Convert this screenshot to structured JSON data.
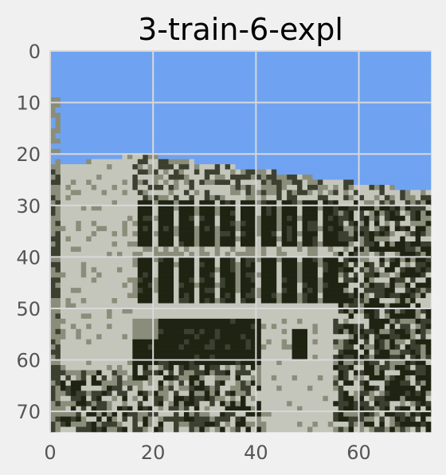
{
  "chart_data": {
    "type": "heatmap",
    "title": "3-train-6-expl",
    "xlabel": "",
    "ylabel": "",
    "xlim": [
      0,
      74
    ],
    "ylim": [
      74,
      0
    ],
    "x_ticks": [
      0,
      20,
      40,
      60
    ],
    "y_ticks": [
      0,
      10,
      20,
      30,
      40,
      50,
      60,
      70
    ],
    "grid": true,
    "image_size": [
      74,
      74
    ],
    "colors": {
      "sky": "#6fa3f2",
      "light": "#c5c6bb",
      "mid": "#8b8d7b",
      "dark": "#3c4030",
      "darkest": "#1e2312",
      "grid": "#d8d8d8",
      "figure_bg": "#f0f0f0"
    }
  }
}
